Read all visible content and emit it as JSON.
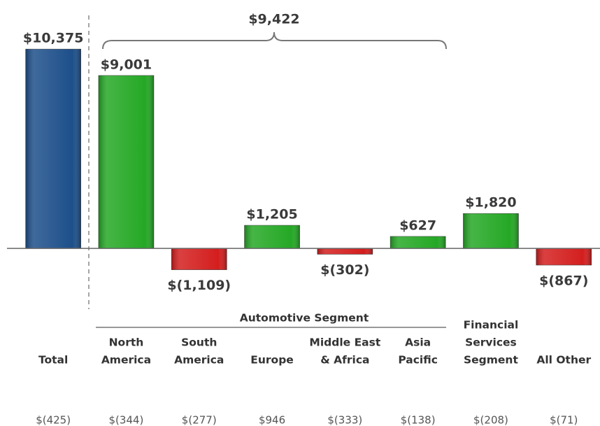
{
  "chart_data": {
    "type": "bar",
    "categories": [
      [
        "Total"
      ],
      [
        "North",
        "America"
      ],
      [
        "South",
        "America"
      ],
      [
        "Europe"
      ],
      [
        "Middle East",
        "& Africa"
      ],
      [
        "Asia",
        "Pacific"
      ],
      [
        "Financial",
        "Services",
        "Segment"
      ],
      [
        "All Other"
      ]
    ],
    "values": [
      10375,
      9001,
      -1109,
      1205,
      -302,
      627,
      1820,
      -867
    ],
    "value_labels": [
      "$10,375",
      "$9,001",
      "$(1,109)",
      "$1,205",
      "$(302)",
      "$627",
      "$1,820",
      "$(867)"
    ],
    "colors": [
      "#1d4f8a",
      "#25a825",
      "#d41e1e",
      "#25a825",
      "#d41e1e",
      "#25a825",
      "#25a825",
      "#d41e1e"
    ],
    "ylim": [
      -3000,
      11000
    ],
    "annotations": [
      "$9,422"
    ],
    "group_label": "Automotive Segment",
    "footer_values": [
      -425,
      -344,
      -277,
      946,
      -333,
      -138,
      -208,
      -71
    ],
    "footer_labels": [
      "$(425)",
      "$(344)",
      "$(277)",
      "$946",
      "$(333)",
      "$(138)",
      "$(208)",
      "$(71)"
    ]
  }
}
